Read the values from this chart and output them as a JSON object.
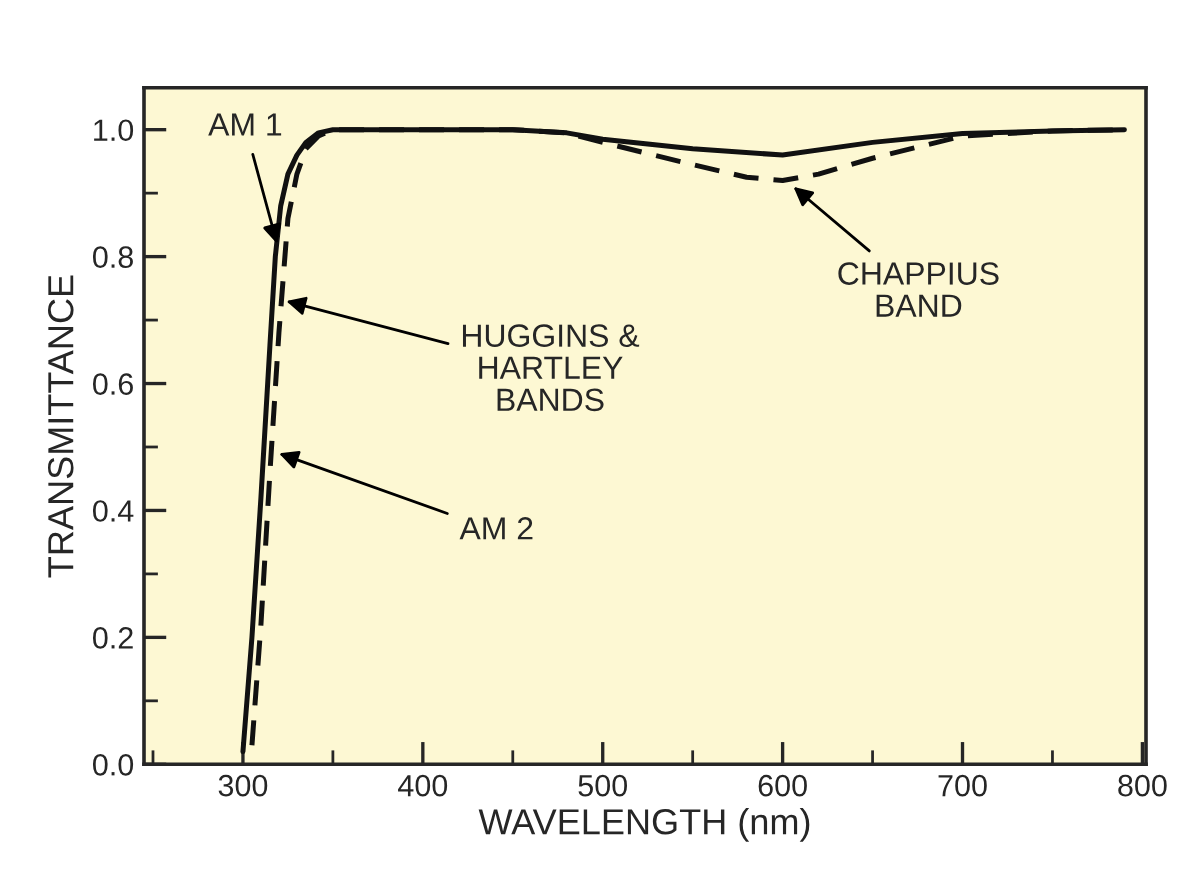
{
  "chart_data": {
    "type": "line",
    "xlabel": "WAVELENGTH (nm)",
    "ylabel": "TRANSMITTANCE",
    "xlim": [
      245,
      802
    ],
    "ylim": [
      0,
      1.066
    ],
    "xticks": [
      300,
      400,
      500,
      600,
      700,
      800
    ],
    "yticks": [
      {
        "value": 0,
        "label": "0.0"
      },
      0.2,
      0.4,
      0.6,
      0.8,
      {
        "value": 1,
        "label": "1.0"
      }
    ],
    "grid": false,
    "marker": "none",
    "series": [
      {
        "color": "#111111",
        "line_style": "solid",
        "x": [
          300,
          305,
          310,
          315,
          318,
          321,
          325,
          330,
          335,
          342,
          350,
          400,
          450,
          480,
          500,
          550,
          600,
          650,
          700,
          750,
          790
        ],
        "values": [
          0.02,
          0.2,
          0.42,
          0.66,
          0.8,
          0.88,
          0.93,
          0.96,
          0.98,
          0.995,
          1.0,
          1.0,
          1.0,
          0.995,
          0.985,
          0.97,
          0.96,
          0.98,
          0.994,
          0.998,
          1.0
        ]
      },
      {
        "color": "#111111",
        "line_style": "dashed",
        "x": [
          305,
          310,
          315,
          320,
          325,
          330,
          335,
          342,
          350,
          400,
          450,
          480,
          500,
          550,
          580,
          600,
          620,
          650,
          700,
          750,
          790
        ],
        "values": [
          0.03,
          0.22,
          0.46,
          0.68,
          0.86,
          0.93,
          0.97,
          0.99,
          1.0,
          1.0,
          1.0,
          0.995,
          0.98,
          0.945,
          0.925,
          0.92,
          0.93,
          0.955,
          0.99,
          0.998,
          1.0
        ]
      }
    ],
    "annotations": [
      {
        "text": "AM 1",
        "x": 319,
        "y": 0.82
      },
      {
        "text": "HUGGINS &\nHARTLEY\nBANDS",
        "x": 324,
        "y": 0.73
      },
      {
        "text": "AM 2",
        "x": 320,
        "y": 0.49
      },
      {
        "text": "CHAPPIUS\nBAND",
        "x": 606,
        "y": 0.91
      }
    ]
  }
}
